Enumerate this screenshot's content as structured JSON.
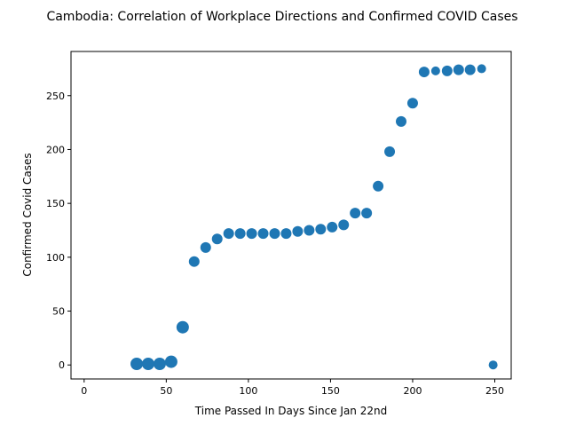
{
  "chart_data": {
    "type": "scatter",
    "title": "Cambodia: Correlation of Workplace Directions and Confirmed COVID Cases",
    "xlabel": "Time Passed In Days Since Jan 22nd",
    "ylabel": "Confirmed Covid Cases",
    "xlim": [
      -8,
      260
    ],
    "ylim": [
      -13,
      291
    ],
    "xticks": [
      0,
      50,
      100,
      150,
      200,
      250
    ],
    "yticks": [
      0,
      50,
      100,
      150,
      200,
      250
    ],
    "grid": false,
    "color": "#1f77b4",
    "points": [
      {
        "x": 32,
        "y": 1,
        "size": "large"
      },
      {
        "x": 39,
        "y": 1,
        "size": "large"
      },
      {
        "x": 46,
        "y": 1,
        "size": "large"
      },
      {
        "x": 53,
        "y": 3,
        "size": "large"
      },
      {
        "x": 60,
        "y": 35,
        "size": "large"
      },
      {
        "x": 67,
        "y": 96,
        "size": "medium"
      },
      {
        "x": 74,
        "y": 109,
        "size": "medium"
      },
      {
        "x": 81,
        "y": 117,
        "size": "medium"
      },
      {
        "x": 88,
        "y": 122,
        "size": "medium"
      },
      {
        "x": 95,
        "y": 122,
        "size": "medium"
      },
      {
        "x": 102,
        "y": 122,
        "size": "medium"
      },
      {
        "x": 109,
        "y": 122,
        "size": "medium"
      },
      {
        "x": 116,
        "y": 122,
        "size": "medium"
      },
      {
        "x": 123,
        "y": 122,
        "size": "medium"
      },
      {
        "x": 130,
        "y": 124,
        "size": "medium"
      },
      {
        "x": 137,
        "y": 125,
        "size": "medium"
      },
      {
        "x": 144,
        "y": 126,
        "size": "medium"
      },
      {
        "x": 151,
        "y": 128,
        "size": "medium"
      },
      {
        "x": 158,
        "y": 130,
        "size": "medium"
      },
      {
        "x": 165,
        "y": 141,
        "size": "medium"
      },
      {
        "x": 172,
        "y": 141,
        "size": "medium"
      },
      {
        "x": 179,
        "y": 166,
        "size": "medium"
      },
      {
        "x": 186,
        "y": 198,
        "size": "medium"
      },
      {
        "x": 193,
        "y": 226,
        "size": "medium"
      },
      {
        "x": 200,
        "y": 243,
        "size": "medium"
      },
      {
        "x": 207,
        "y": 272,
        "size": "medium"
      },
      {
        "x": 214,
        "y": 273,
        "size": "small"
      },
      {
        "x": 221,
        "y": 273,
        "size": "medium"
      },
      {
        "x": 228,
        "y": 274,
        "size": "medium"
      },
      {
        "x": 235,
        "y": 274,
        "size": "medium"
      },
      {
        "x": 242,
        "y": 275,
        "size": "small"
      },
      {
        "x": 249,
        "y": 0,
        "size": "small"
      }
    ]
  }
}
